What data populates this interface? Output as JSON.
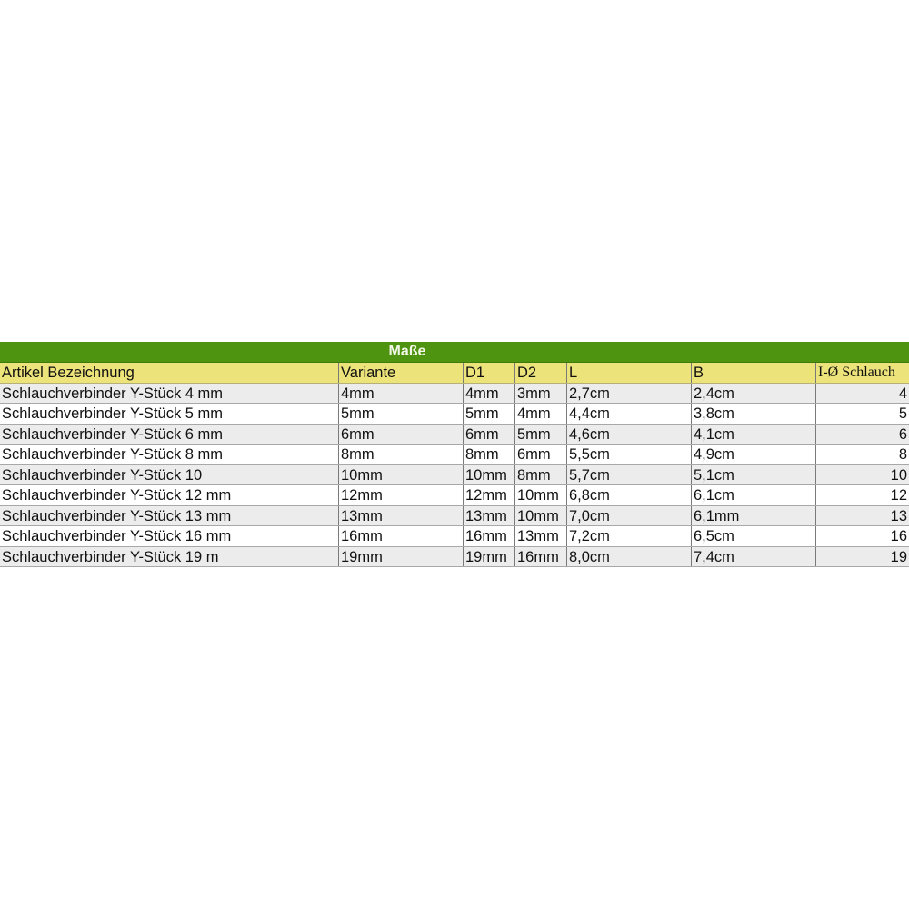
{
  "table": {
    "group_header": "Maße",
    "columns": [
      "Artikel Bezeichnung",
      "Variante",
      "D1",
      "D2",
      "L",
      "B",
      "I-Ø Schlauch"
    ],
    "rows": [
      [
        "Schlauchverbinder Y-Stück 4 mm",
        "4mm",
        "4mm",
        "3mm",
        "2,7cm",
        "2,4cm",
        "4"
      ],
      [
        "Schlauchverbinder Y-Stück 5 mm",
        "5mm",
        "5mm",
        "4mm",
        "4,4cm",
        "3,8cm",
        "5"
      ],
      [
        "Schlauchverbinder Y-Stück 6 mm",
        "6mm",
        "6mm",
        "5mm",
        "4,6cm",
        "4,1cm",
        "6"
      ],
      [
        "Schlauchverbinder Y-Stück 8 mm",
        "8mm",
        "8mm",
        "6mm",
        "5,5cm",
        "4,9cm",
        "8"
      ],
      [
        "Schlauchverbinder Y-Stück 10",
        "10mm",
        "10mm",
        "8mm",
        "5,7cm",
        "5,1cm",
        "10"
      ],
      [
        "Schlauchverbinder Y-Stück 12 mm",
        "12mm",
        "12mm",
        "10mm",
        "6,8cm",
        "6,1cm",
        "12"
      ],
      [
        "Schlauchverbinder Y-Stück 13 mm",
        "13mm",
        "13mm",
        "10mm",
        "7,0cm",
        "6,1mm",
        "13"
      ],
      [
        "Schlauchverbinder Y-Stück 16 mm",
        "16mm",
        "16mm",
        "13mm",
        "7,2cm",
        "6,5cm",
        "16"
      ],
      [
        "Schlauchverbinder Y-Stück 19 m",
        "19mm",
        "19mm",
        "16mm",
        "8,0cm",
        "7,4cm",
        "19"
      ]
    ],
    "colors": {
      "group_header_bg": "#4e9410",
      "header_bg": "#ece47a",
      "row_alt_bg": "#ececec"
    }
  }
}
